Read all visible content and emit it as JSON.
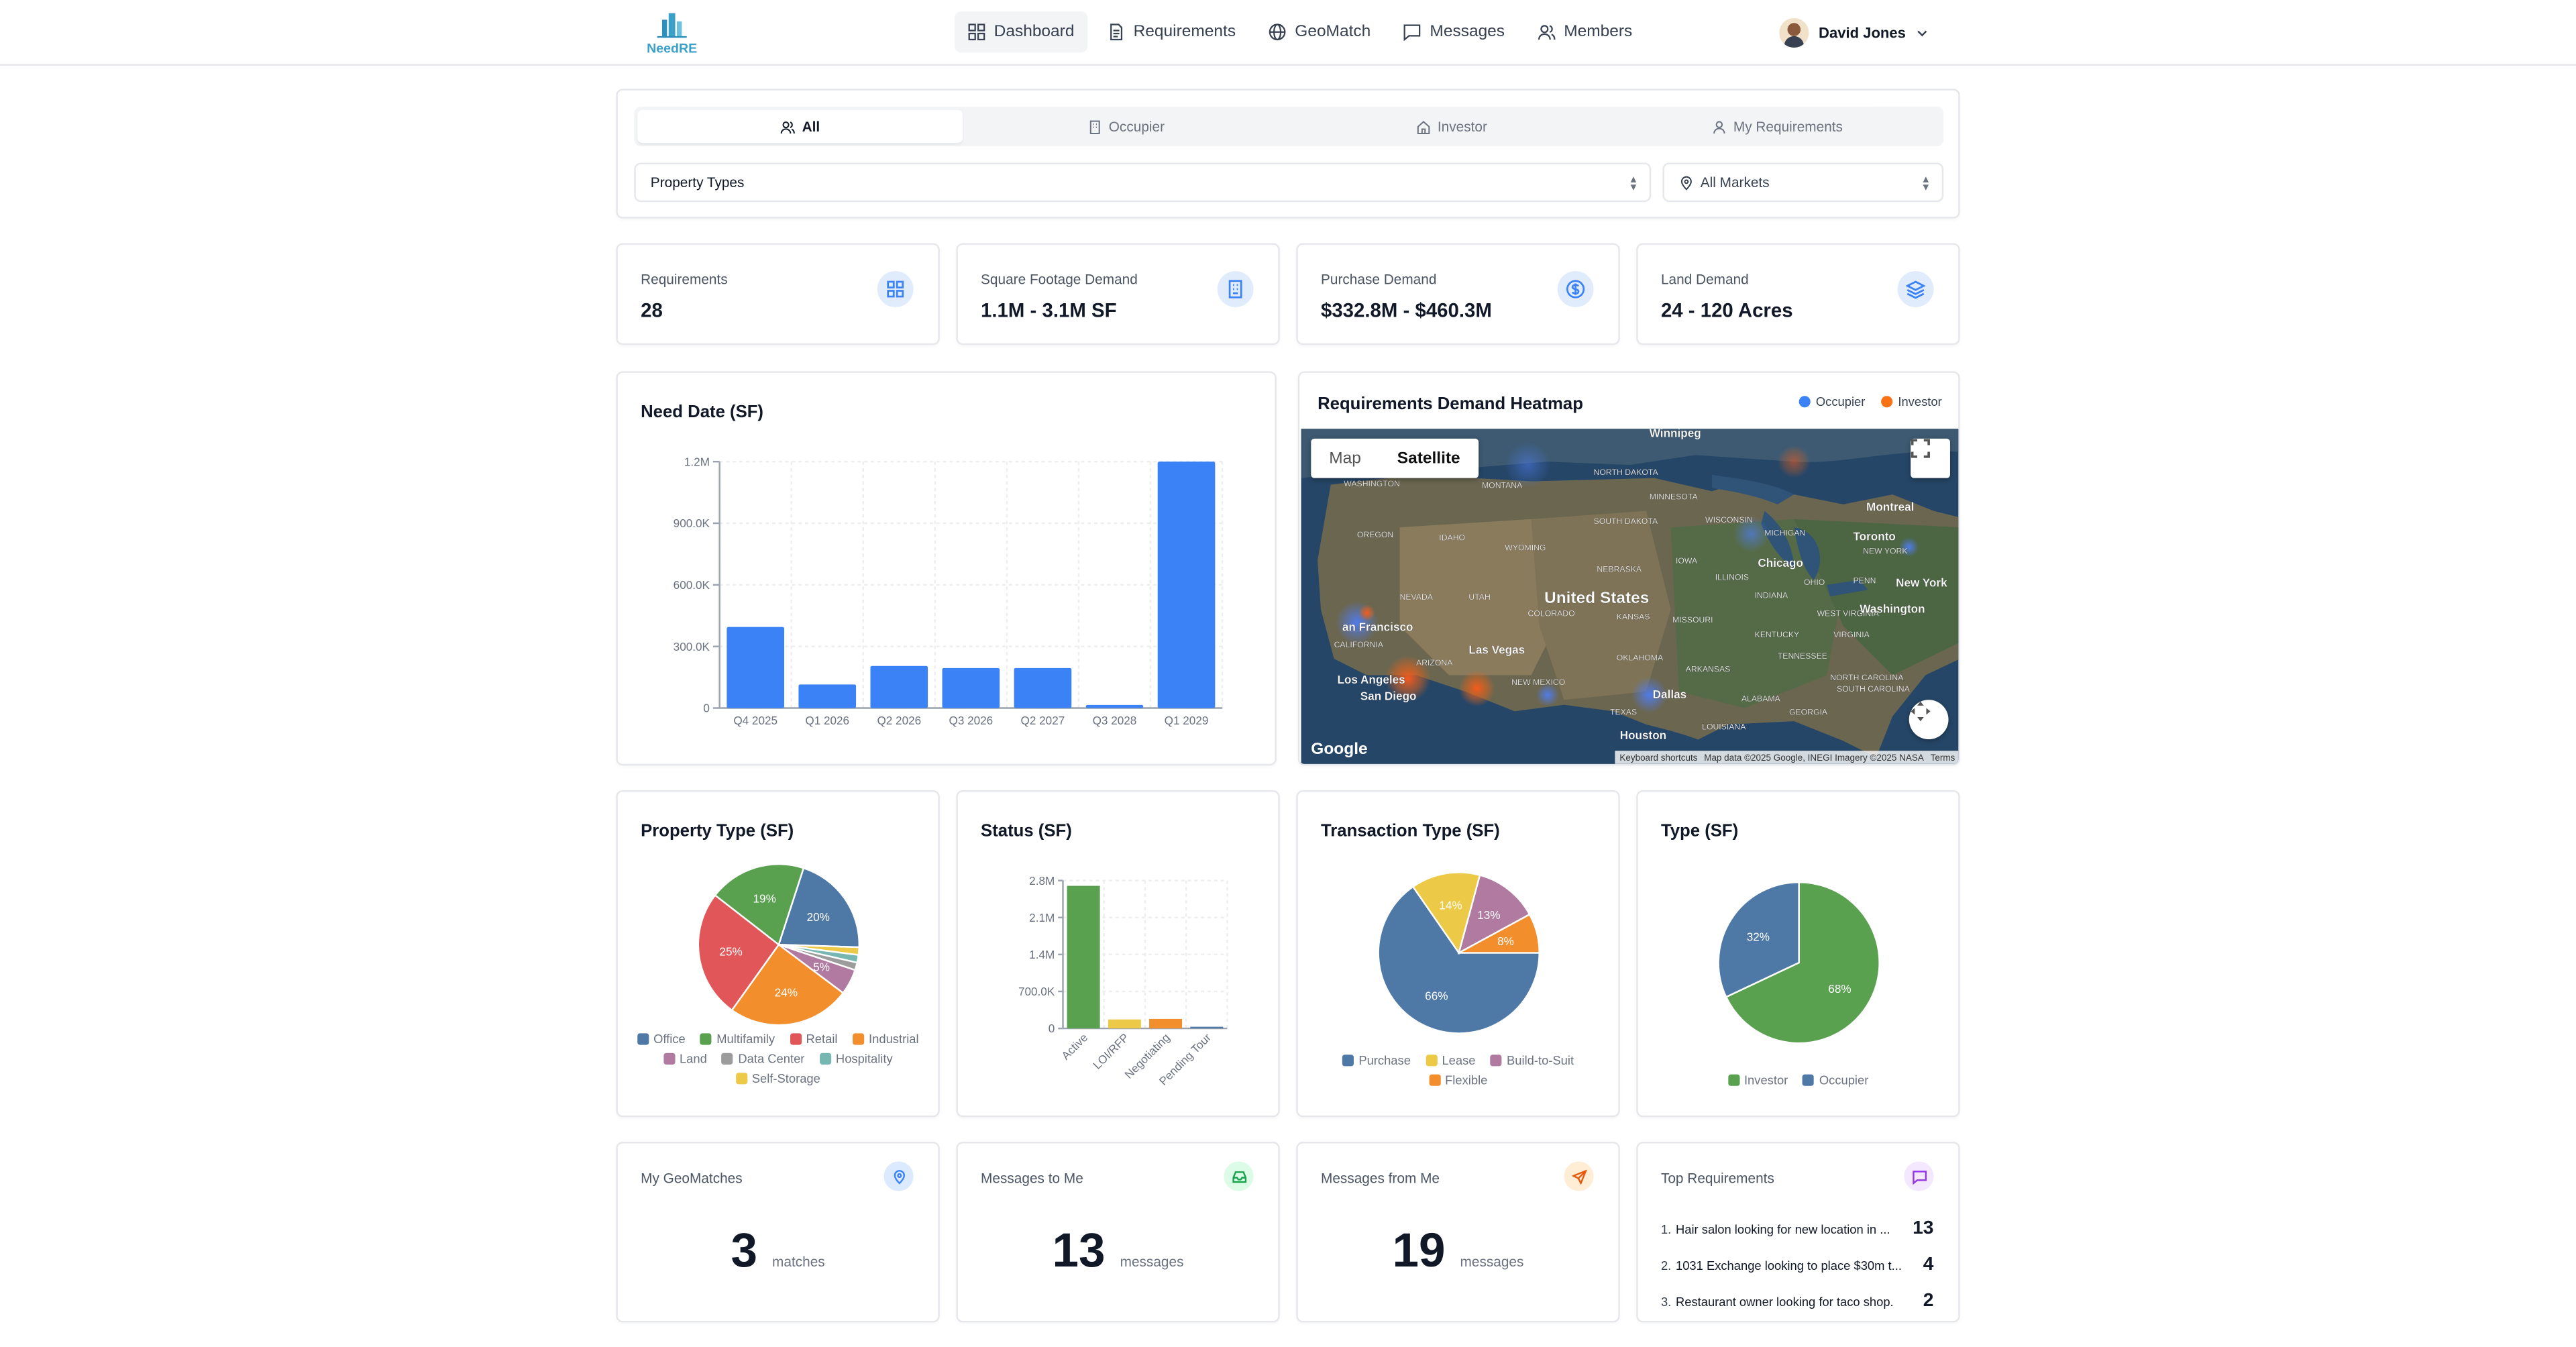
{
  "app": {
    "logo_text": "NeedRE"
  },
  "nav": [
    {
      "label": "Dashboard",
      "icon": "grid-icon"
    },
    {
      "label": "Requirements",
      "icon": "document-icon"
    },
    {
      "label": "GeoMatch",
      "icon": "globe-icon"
    },
    {
      "label": "Messages",
      "icon": "message-icon"
    },
    {
      "label": "Members",
      "icon": "users-icon"
    }
  ],
  "user": {
    "name": "David Jones"
  },
  "filters": {
    "tabs": [
      "All",
      "Occupier",
      "Investor",
      "My Requirements"
    ],
    "property_types": "Property Types",
    "markets": "All Markets"
  },
  "stats": [
    {
      "label": "Requirements",
      "value": "28",
      "icon": "grid-icon"
    },
    {
      "label": "Square Footage Demand",
      "value": "1.1M - 3.1M SF",
      "icon": "building-icon"
    },
    {
      "label": "Purchase Demand",
      "value": "$332.8M - $460.3M",
      "icon": "dollar-icon"
    },
    {
      "label": "Land Demand",
      "value": "24 - 120 Acres",
      "icon": "layers-icon"
    }
  ],
  "need_date": {
    "title": "Need Date (SF)"
  },
  "heatmap": {
    "title": "Requirements Demand Heatmap",
    "legend": [
      "Occupier",
      "Investor"
    ],
    "map_btn": "Map",
    "sat_btn": "Satellite",
    "google": "Google",
    "attrib": [
      "Keyboard shortcuts",
      "Map data ©2025 Google, INEGI Imagery ©2025 NASA",
      "Terms"
    ],
    "labels": [
      "Winnipeg",
      "WASHINGTON",
      "MONTANA",
      "NORTH DAKOTA",
      "MINNESOTA",
      "Montreal",
      "OREGON",
      "IDAHO",
      "SOUTH DAKOTA",
      "WISCONSIN",
      "MICHIGAN",
      "Toronto",
      "WYOMING",
      "NEW YORK",
      "Chicago",
      "NEBRASKA",
      "IOWA",
      "ILLINOIS",
      "OHIO",
      "PENN",
      "NEVADA",
      "UTAH",
      "United States",
      "INDIANA",
      "New York",
      "an Francisco",
      "COLORADO",
      "KANSAS",
      "MISSOURI",
      "WEST VIRGINIA",
      "Washington",
      "CALIFORNIA",
      "Las Vegas",
      "KENTUCKY",
      "VIRGINIA",
      "ARIZONA",
      "OKLAHOMA",
      "TENNESSEE",
      "NORTH CAROLINA",
      "Los Angeles",
      "NEW MEXICO",
      "ARKANSAS",
      "SOUTH CAROLINA",
      "San Diego",
      "Dallas",
      "ALABAMA",
      "GEORGIA",
      "TEXAS",
      "LOUISIANA",
      "Houston"
    ]
  },
  "property_type": {
    "title": "Property Type (SF)"
  },
  "status": {
    "title": "Status (SF)"
  },
  "transaction": {
    "title": "Transaction Type (SF)"
  },
  "type": {
    "title": "Type (SF)"
  },
  "geomatches": {
    "label": "My GeoMatches",
    "value": "3",
    "unit": "matches"
  },
  "messages_to": {
    "label": "Messages to Me",
    "value": "13",
    "unit": "messages"
  },
  "messages_from": {
    "label": "Messages from Me",
    "value": "19",
    "unit": "messages"
  },
  "top_requirements": {
    "label": "Top Requirements",
    "items": [
      {
        "num": "1.",
        "text": "Hair salon looking for new location in ...",
        "count": "13"
      },
      {
        "num": "2.",
        "text": "1031 Exchange looking to place $30m t...",
        "count": "4"
      },
      {
        "num": "3.",
        "text": "Restaurant owner looking for taco shop.",
        "count": "2"
      }
    ]
  },
  "chart_data": [
    {
      "type": "bar",
      "title": "Need Date (SF)",
      "categories": [
        "Q4 2025",
        "Q1 2026",
        "Q2 2026",
        "Q3 2026",
        "Q2 2027",
        "Q3 2028",
        "Q1 2029"
      ],
      "values": [
        395000,
        115000,
        205000,
        195000,
        195000,
        15000,
        1200000
      ],
      "yticks": [
        "0",
        "300.0K",
        "600.0K",
        "900.0K",
        "1.2M"
      ],
      "ylim": [
        0,
        1200000
      ],
      "color": "#3b82f6"
    },
    {
      "type": "pie",
      "title": "Property Type (SF)",
      "series": [
        {
          "name": "Office",
          "value": 20,
          "label": "20%",
          "color": "#4e79a7"
        },
        {
          "name": "Self-Storage",
          "value": 1.5,
          "label": "",
          "color": "#edc948"
        },
        {
          "name": "Hospitality",
          "value": 1.5,
          "label": "",
          "color": "#76b7b2"
        },
        {
          "name": "Data Center",
          "value": 1.5,
          "label": "",
          "color": "#9c9c9c"
        },
        {
          "name": "Land",
          "value": 5,
          "label": "5%",
          "color": "#b07aa1"
        },
        {
          "name": "Industrial",
          "value": 24,
          "label": "24%",
          "color": "#f28e2b"
        },
        {
          "name": "Retail",
          "value": 25,
          "label": "25%",
          "color": "#e15759"
        },
        {
          "name": "Multifamily",
          "value": 19,
          "label": "19%",
          "color": "#59a14f"
        }
      ],
      "legend": [
        "Office",
        "Multifamily",
        "Retail",
        "Industrial",
        "Land",
        "Data Center",
        "Hospitality",
        "Self-Storage"
      ],
      "legend_colors": [
        "#4e79a7",
        "#59a14f",
        "#e15759",
        "#f28e2b",
        "#b07aa1",
        "#9c9c9c",
        "#76b7b2",
        "#edc948"
      ]
    },
    {
      "type": "bar",
      "title": "Status (SF)",
      "categories": [
        "Active",
        "LOI/RFP",
        "Negotiating",
        "Pending Tour"
      ],
      "values": [
        2700000,
        170000,
        180000,
        20000
      ],
      "colors": [
        "#59a14f",
        "#edc948",
        "#f28e2b",
        "#4e79a7"
      ],
      "yticks": [
        "0",
        "700.0K",
        "1.4M",
        "2.1M",
        "2.8M"
      ],
      "ylim": [
        0,
        2800000
      ]
    },
    {
      "type": "pie",
      "title": "Transaction Type (SF)",
      "series": [
        {
          "name": "Purchase",
          "value": 66,
          "label": "66%",
          "color": "#4e79a7"
        },
        {
          "name": "Lease",
          "value": 14,
          "label": "14%",
          "color": "#edc948"
        },
        {
          "name": "Build-to-Suit",
          "value": 13,
          "label": "13%",
          "color": "#b07aa1"
        },
        {
          "name": "Flexible",
          "value": 8,
          "label": "8%",
          "color": "#f28e2b"
        }
      ],
      "legend": [
        "Purchase",
        "Lease",
        "Build-to-Suit",
        "Flexible"
      ],
      "legend_colors": [
        "#4e79a7",
        "#edc948",
        "#b07aa1",
        "#f28e2b"
      ]
    },
    {
      "type": "pie",
      "title": "Type (SF)",
      "series": [
        {
          "name": "Investor",
          "value": 68,
          "label": "68%",
          "color": "#59a14f"
        },
        {
          "name": "Occupier",
          "value": 32,
          "label": "32%",
          "color": "#4e79a7"
        }
      ],
      "legend": [
        "Investor",
        "Occupier"
      ],
      "legend_colors": [
        "#59a14f",
        "#4e79a7"
      ]
    }
  ]
}
